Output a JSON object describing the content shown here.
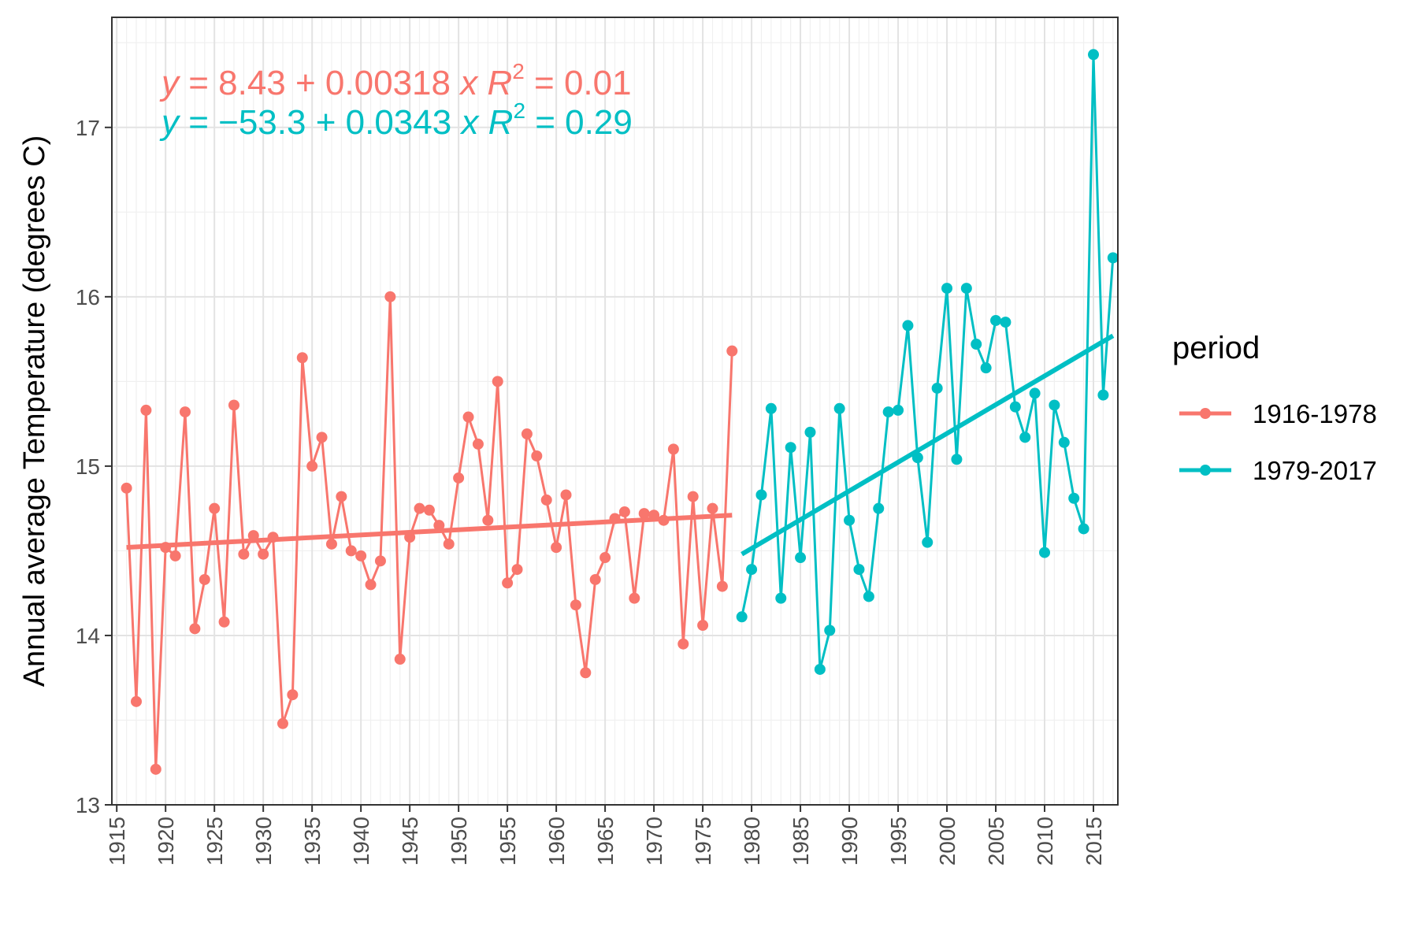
{
  "chart_data": {
    "type": "line",
    "xlabel": "",
    "ylabel": "Annual average Temperature (degrees C)",
    "xlim": [
      1914.5,
      2017.5
    ],
    "ylim": [
      13,
      17.65
    ],
    "x_ticks": [
      1915,
      1920,
      1925,
      1930,
      1935,
      1940,
      1945,
      1950,
      1955,
      1960,
      1965,
      1970,
      1975,
      1980,
      1985,
      1990,
      1995,
      2000,
      2005,
      2010,
      2015
    ],
    "y_ticks": [
      13,
      14,
      15,
      16,
      17
    ],
    "grid": true,
    "legend": {
      "title": "period",
      "placement": "right"
    },
    "series": [
      {
        "name": "1916-1978",
        "color": "#F8766D",
        "x": [
          1916,
          1917,
          1918,
          1919,
          1920,
          1921,
          1922,
          1923,
          1924,
          1925,
          1926,
          1927,
          1928,
          1929,
          1930,
          1931,
          1932,
          1933,
          1934,
          1935,
          1936,
          1937,
          1938,
          1939,
          1940,
          1941,
          1942,
          1943,
          1944,
          1945,
          1946,
          1947,
          1948,
          1949,
          1950,
          1951,
          1952,
          1953,
          1954,
          1955,
          1956,
          1957,
          1958,
          1959,
          1960,
          1961,
          1962,
          1963,
          1964,
          1965,
          1966,
          1967,
          1968,
          1969,
          1970,
          1971,
          1972,
          1973,
          1974,
          1975,
          1976,
          1977,
          1978
        ],
        "values": [
          14.87,
          13.61,
          15.33,
          13.21,
          14.52,
          14.47,
          15.32,
          14.04,
          14.33,
          14.75,
          14.08,
          15.36,
          14.48,
          14.59,
          14.48,
          14.58,
          13.48,
          13.65,
          15.64,
          15.0,
          15.17,
          14.54,
          14.82,
          14.5,
          14.47,
          14.3,
          14.44,
          16.0,
          13.86,
          14.58,
          14.75,
          14.74,
          14.65,
          14.54,
          14.93,
          15.29,
          15.13,
          14.68,
          15.5,
          14.31,
          14.39,
          15.19,
          15.06,
          14.8,
          14.52,
          14.83,
          14.18,
          13.78,
          14.33,
          14.46,
          14.69,
          14.73,
          14.22,
          14.72,
          14.71,
          14.68,
          15.1,
          13.95,
          14.82,
          14.06,
          14.75,
          14.29,
          15.68
        ],
        "trend": {
          "x": [
            1916,
            1978
          ],
          "y": [
            14.52,
            14.71
          ]
        },
        "equation_parts": [
          "y",
          " = 8.43 + 0.00318 ",
          "x",
          "   ",
          "R",
          "2",
          " = 0.01"
        ]
      },
      {
        "name": "1979-2017",
        "color": "#00BFC4",
        "x": [
          1979,
          1980,
          1981,
          1982,
          1983,
          1984,
          1985,
          1986,
          1987,
          1988,
          1989,
          1990,
          1991,
          1992,
          1993,
          1994,
          1995,
          1996,
          1997,
          1998,
          1999,
          2000,
          2001,
          2002,
          2003,
          2004,
          2005,
          2006,
          2007,
          2008,
          2009,
          2010,
          2011,
          2012,
          2013,
          2014,
          2015,
          2016,
          2017
        ],
        "values": [
          14.11,
          14.39,
          14.83,
          15.34,
          14.22,
          15.11,
          14.46,
          15.2,
          13.8,
          14.03,
          15.34,
          14.68,
          14.39,
          14.23,
          14.75,
          15.32,
          15.33,
          15.83,
          15.05,
          14.55,
          15.46,
          16.05,
          15.04,
          16.05,
          15.72,
          15.58,
          15.86,
          15.85,
          15.35,
          15.17,
          15.43,
          14.49,
          15.36,
          15.14,
          14.81,
          14.63,
          17.43,
          15.42,
          16.23
        ],
        "trend": {
          "x": [
            1979,
            2017
          ],
          "y": [
            14.48,
            15.77
          ]
        },
        "equation_parts": [
          "y",
          " = −53.3 + 0.0343 ",
          "x",
          "   ",
          "R",
          "2",
          " = 0.29"
        ]
      }
    ]
  }
}
